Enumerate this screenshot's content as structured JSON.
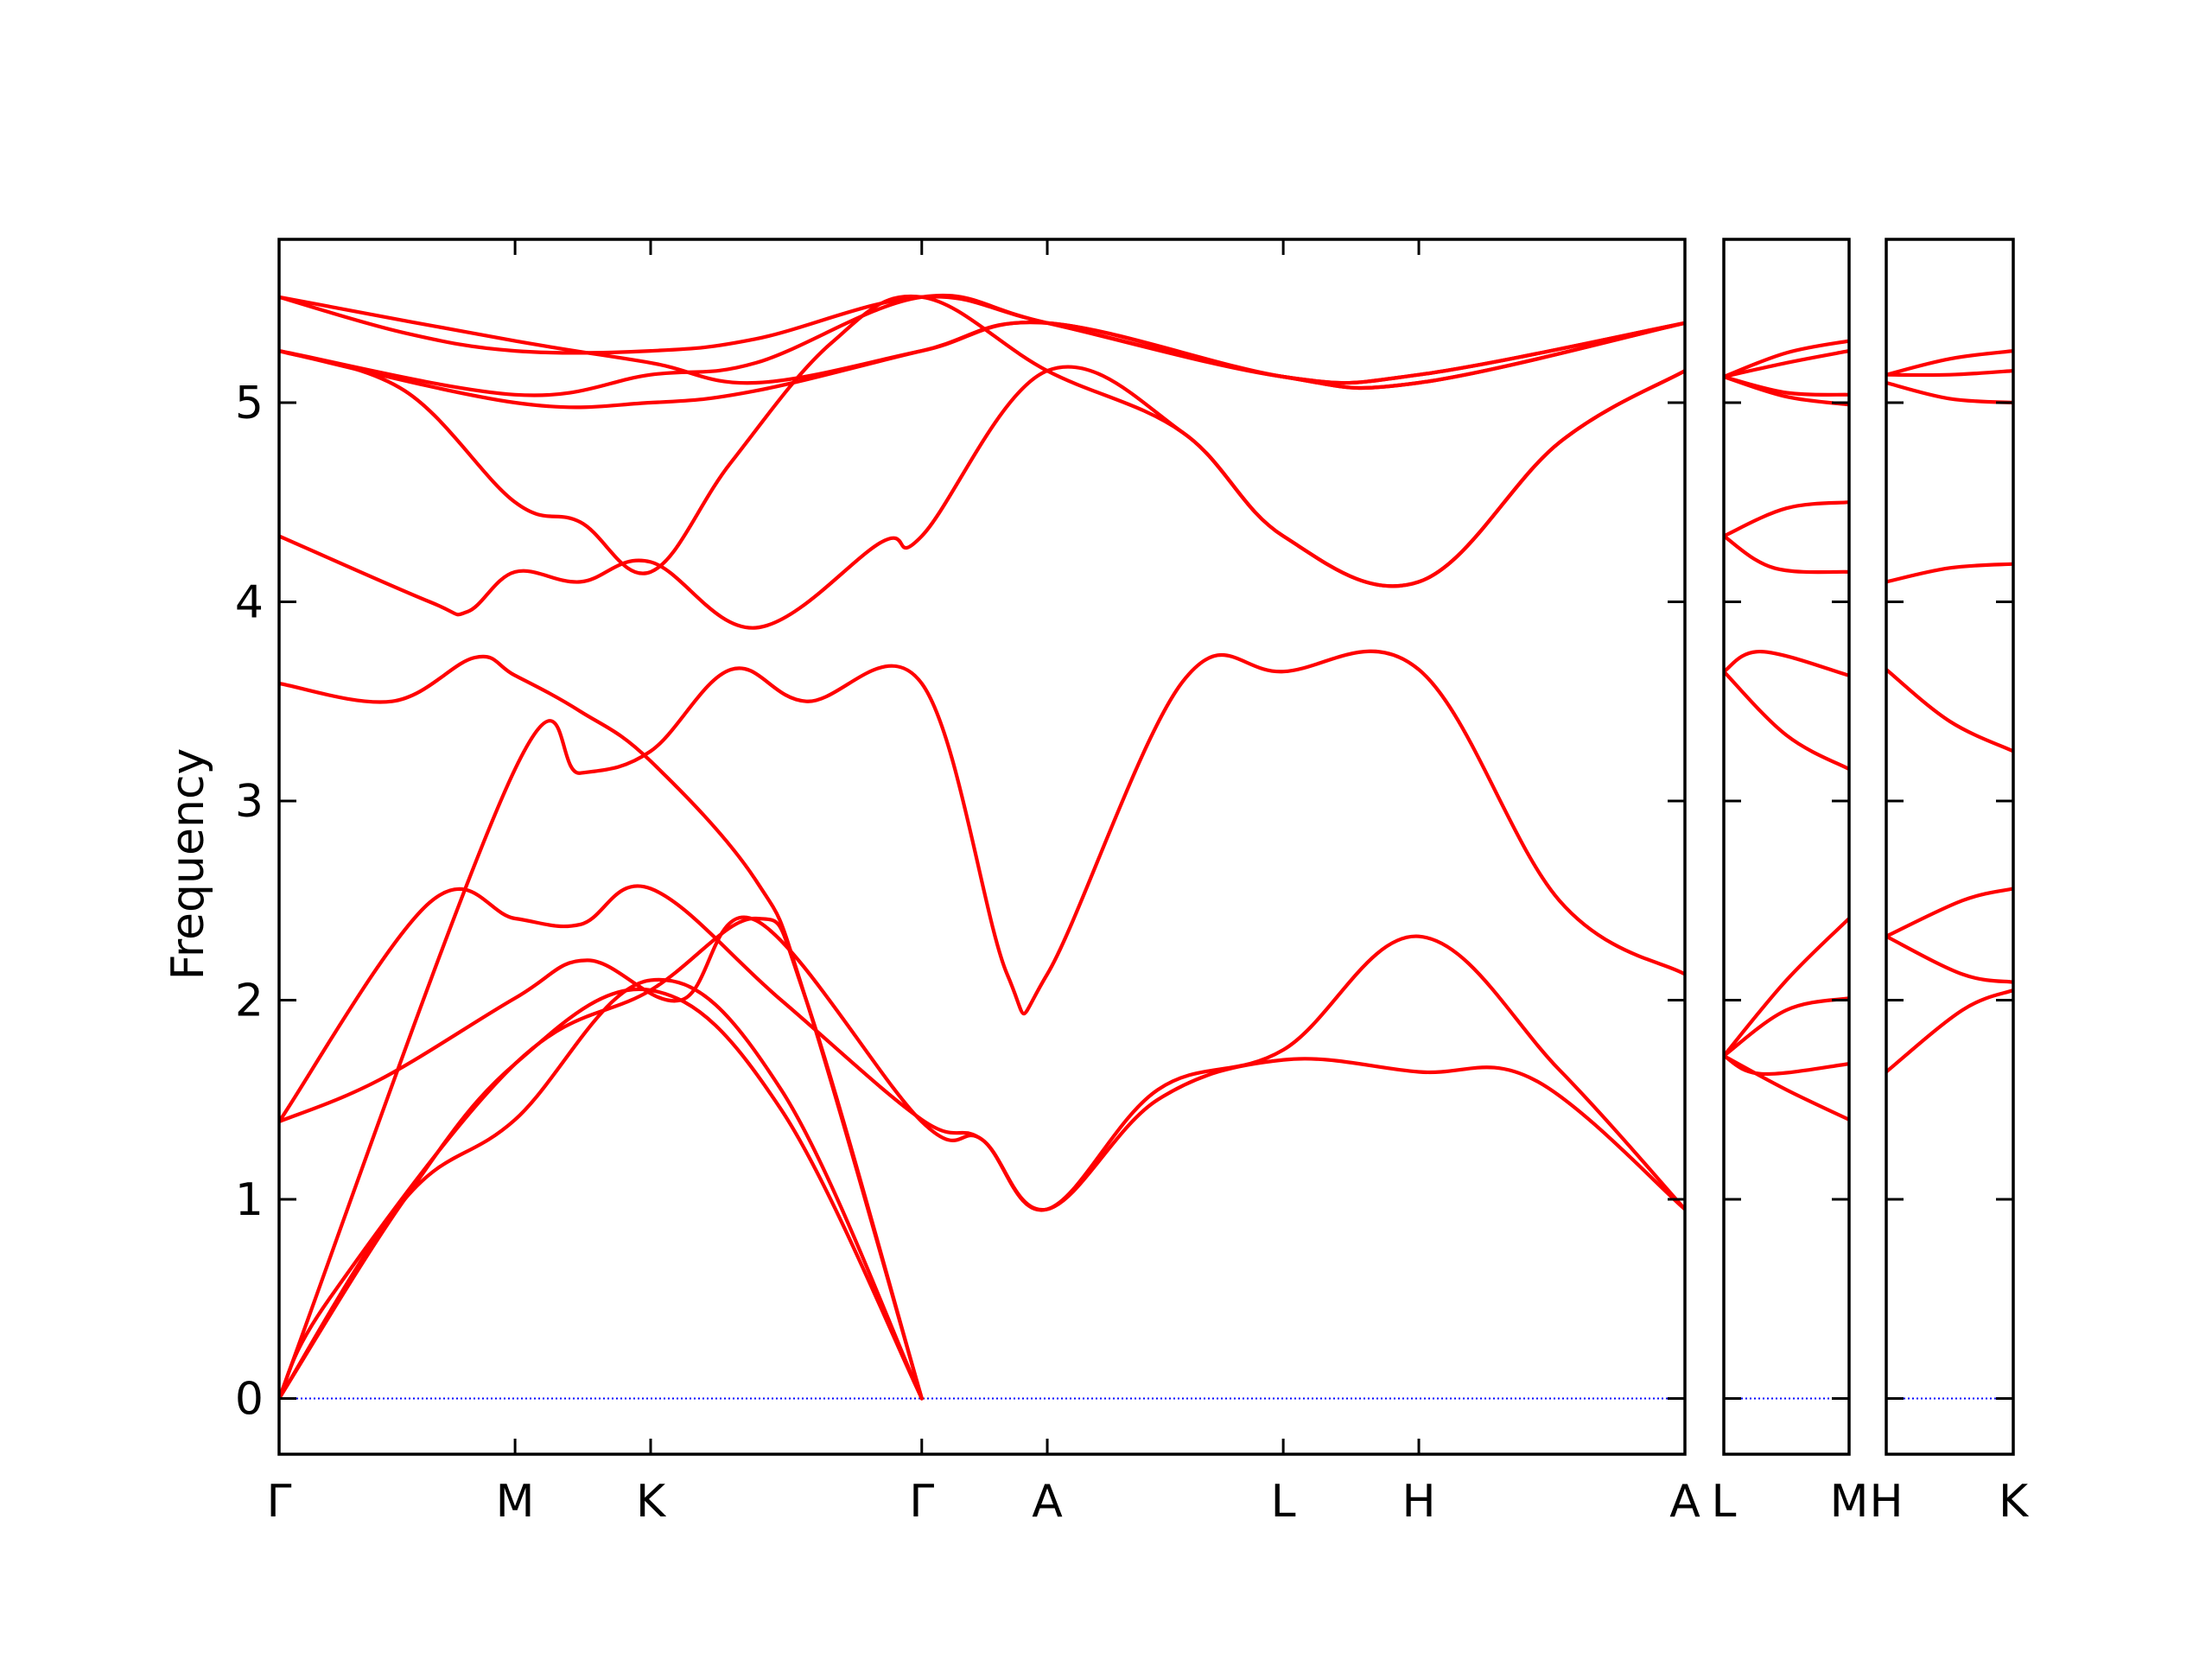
{
  "chart_data": {
    "type": "line",
    "title": "",
    "ylabel": "Frequency",
    "xlabel": "",
    "ylim": [
      -0.28,
      5.82
    ],
    "yticks": [
      "0",
      "1",
      "2",
      "3",
      "4",
      "5"
    ],
    "band_color": "#ff0000",
    "zero_line_color": "#0000ff",
    "panels": [
      {
        "name": "main",
        "xlim": [
          0,
          5.6
        ],
        "ticks": [
          {
            "x": 0.0,
            "label": "Γ"
          },
          {
            "x": 0.94,
            "label": "M"
          },
          {
            "x": 1.48,
            "label": "K"
          },
          {
            "x": 2.56,
            "label": "Γ"
          },
          {
            "x": 3.06,
            "label": "A"
          },
          {
            "x": 4.0,
            "label": "L"
          },
          {
            "x": 4.54,
            "label": "H"
          },
          {
            "x": 5.6,
            "label": "A"
          }
        ],
        "bands": [
          [
            [
              0,
              0
            ],
            [
              0.94,
              3.16
            ],
            [
              1.2,
              3.14
            ],
            [
              1.48,
              3.25
            ],
            [
              1.8,
              3.66
            ],
            [
              2.1,
              3.5
            ],
            [
              2.56,
              3.59
            ],
            [
              2.9,
              2.13
            ],
            [
              3.06,
              2.13
            ],
            [
              3.6,
              3.6
            ],
            [
              4.0,
              3.65
            ],
            [
              4.54,
              3.66
            ],
            [
              5.1,
              2.5
            ],
            [
              5.6,
              2.13
            ]
          ],
          [
            [
              0,
              3.59
            ],
            [
              0.45,
              3.5
            ],
            [
              0.78,
              3.72
            ],
            [
              0.94,
              3.63
            ],
            [
              1.2,
              3.45
            ],
            [
              1.48,
              3.2
            ],
            [
              1.9,
              2.6
            ],
            [
              2.1,
              2.0
            ],
            [
              2.56,
              0
            ]
          ],
          [
            [
              0,
              0
            ],
            [
              0.5,
              1.0
            ],
            [
              0.94,
              1.68
            ],
            [
              1.48,
              2.05
            ],
            [
              2.0,
              1.45
            ],
            [
              2.56,
              0
            ]
          ],
          [
            [
              0,
              0
            ],
            [
              0.5,
              1.0
            ],
            [
              0.94,
              1.4
            ],
            [
              1.48,
              2.1
            ],
            [
              2.0,
              1.55
            ],
            [
              2.56,
              0
            ]
          ],
          [
            [
              0,
              1.39
            ],
            [
              0.6,
              2.49
            ],
            [
              0.94,
              2.41
            ],
            [
              1.2,
              2.38
            ],
            [
              1.48,
              2.56
            ],
            [
              2.0,
              2.0
            ],
            [
              2.56,
              1.4
            ],
            [
              2.8,
              1.3
            ],
            [
              3.06,
              0.95
            ],
            [
              3.5,
              1.55
            ],
            [
              4.0,
              1.75
            ],
            [
              4.54,
              2.32
            ],
            [
              5.1,
              1.65
            ],
            [
              5.6,
              0.95
            ]
          ],
          [
            [
              0,
              1.39
            ],
            [
              0.4,
              1.6
            ],
            [
              0.94,
              2.01
            ],
            [
              1.23,
              2.2
            ],
            [
              1.6,
              2.0
            ],
            [
              1.9,
              2.4
            ],
            [
              2.56,
              1.39
            ],
            [
              2.8,
              1.3
            ],
            [
              3.06,
              0.95
            ],
            [
              3.5,
              1.5
            ],
            [
              4.0,
              1.7
            ],
            [
              4.54,
              1.64
            ],
            [
              5.0,
              1.6
            ],
            [
              5.6,
              0.95
            ]
          ],
          [
            [
              0,
              0
            ],
            [
              0.2,
              0.5
            ],
            [
              0.94,
              1.68
            ],
            [
              1.48,
              2.05
            ],
            [
              1.9,
              2.41
            ],
            [
              2.1,
              2.0
            ],
            [
              2.56,
              0
            ]
          ],
          [
            [
              0,
              4.33
            ],
            [
              0.6,
              4.0
            ],
            [
              0.75,
              3.95
            ],
            [
              0.94,
              4.15
            ],
            [
              1.2,
              4.1
            ],
            [
              1.48,
              4.2
            ],
            [
              1.9,
              3.87
            ],
            [
              2.4,
              4.3
            ],
            [
              2.56,
              4.33
            ],
            [
              3.06,
              5.16
            ],
            [
              3.6,
              4.85
            ],
            [
              4.0,
              4.33
            ],
            [
              4.54,
              4.1
            ],
            [
              5.1,
              4.8
            ],
            [
              5.6,
              5.16
            ]
          ],
          [
            [
              0,
              5.26
            ],
            [
              0.5,
              5.06
            ],
            [
              0.94,
              4.5
            ],
            [
              1.2,
              4.4
            ],
            [
              1.48,
              4.15
            ],
            [
              1.8,
              4.7
            ],
            [
              2.2,
              5.3
            ],
            [
              2.56,
              5.53
            ],
            [
              3.06,
              5.16
            ],
            [
              3.6,
              4.85
            ],
            [
              4.0,
              4.33
            ],
            [
              4.54,
              4.1
            ],
            [
              5.1,
              4.8
            ],
            [
              5.6,
              5.16
            ]
          ],
          [
            [
              0,
              5.53
            ],
            [
              0.5,
              5.35
            ],
            [
              0.94,
              5.26
            ],
            [
              1.48,
              5.26
            ],
            [
              1.9,
              5.32
            ],
            [
              2.56,
              5.53
            ],
            [
              3.06,
              5.4
            ],
            [
              4.0,
              5.13
            ],
            [
              4.54,
              5.14
            ],
            [
              5.6,
              5.4
            ]
          ],
          [
            [
              0,
              5.26
            ],
            [
              0.94,
              5.0
            ],
            [
              1.48,
              5.0
            ],
            [
              1.9,
              5.06
            ],
            [
              2.56,
              5.26
            ],
            [
              3.06,
              5.4
            ],
            [
              4.0,
              5.13
            ],
            [
              4.54,
              5.1
            ],
            [
              5.6,
              5.4
            ]
          ],
          [
            [
              0,
              5.53
            ],
            [
              0.94,
              5.31
            ],
            [
              1.48,
              5.2
            ],
            [
              1.9,
              5.1
            ],
            [
              2.56,
              5.26
            ],
            [
              3.06,
              5.4
            ],
            [
              4.0,
              5.13
            ],
            [
              4.54,
              5.14
            ],
            [
              5.6,
              5.4
            ]
          ],
          [
            [
              0,
              5.26
            ],
            [
              0.94,
              5.04
            ],
            [
              1.48,
              5.14
            ],
            [
              1.9,
              5.2
            ],
            [
              2.56,
              5.53
            ],
            [
              3.06,
              5.4
            ],
            [
              4.0,
              5.13
            ],
            [
              4.54,
              5.1
            ],
            [
              5.6,
              5.4
            ]
          ]
        ]
      },
      {
        "name": "L-M",
        "xlim": [
          0,
          1
        ],
        "ticks": [
          {
            "x": 0.0,
            "label": "L"
          },
          {
            "x": 1.0,
            "label": "M"
          }
        ],
        "bands": [
          [
            [
              0,
              1.72
            ],
            [
              0.5,
              1.55
            ],
            [
              1,
              1.4
            ]
          ],
          [
            [
              0,
              1.72
            ],
            [
              0.3,
              1.63
            ],
            [
              1,
              1.68
            ]
          ],
          [
            [
              0,
              1.72
            ],
            [
              0.5,
              1.95
            ],
            [
              1,
              2.01
            ]
          ],
          [
            [
              0,
              1.72
            ],
            [
              0.5,
              2.1
            ],
            [
              1,
              2.41
            ]
          ],
          [
            [
              0,
              3.65
            ],
            [
              0.5,
              3.33
            ],
            [
              1,
              3.16
            ]
          ],
          [
            [
              0,
              3.65
            ],
            [
              0.3,
              3.75
            ],
            [
              1,
              3.63
            ]
          ],
          [
            [
              0,
              4.33
            ],
            [
              0.4,
              4.17
            ],
            [
              1,
              4.15
            ]
          ],
          [
            [
              0,
              4.33
            ],
            [
              0.5,
              4.47
            ],
            [
              1,
              4.5
            ]
          ],
          [
            [
              0,
              5.13
            ],
            [
              0.5,
              5.03
            ],
            [
              1,
              4.99
            ]
          ],
          [
            [
              0,
              5.13
            ],
            [
              0.5,
              5.05
            ],
            [
              1,
              5.04
            ]
          ],
          [
            [
              0,
              5.13
            ],
            [
              0.5,
              5.2
            ],
            [
              1,
              5.26
            ]
          ],
          [
            [
              0,
              5.13
            ],
            [
              0.5,
              5.25
            ],
            [
              1,
              5.31
            ]
          ]
        ]
      },
      {
        "name": "H-K",
        "xlim": [
          0,
          1
        ],
        "ticks": [
          {
            "x": 0.0,
            "label": "H"
          },
          {
            "x": 1.0,
            "label": "K"
          }
        ],
        "bands": [
          [
            [
              0,
              1.64
            ],
            [
              0.6,
              1.95
            ],
            [
              1,
              2.05
            ]
          ],
          [
            [
              0,
              2.32
            ],
            [
              0.6,
              2.13
            ],
            [
              1,
              2.09
            ]
          ],
          [
            [
              0,
              2.32
            ],
            [
              0.6,
              2.5
            ],
            [
              1,
              2.56
            ]
          ],
          [
            [
              0,
              3.66
            ],
            [
              0.5,
              3.4
            ],
            [
              1,
              3.25
            ]
          ],
          [
            [
              0,
              4.1
            ],
            [
              0.5,
              4.17
            ],
            [
              1,
              4.19
            ]
          ],
          [
            [
              0,
              5.1
            ],
            [
              0.5,
              5.02
            ],
            [
              1,
              5.0
            ]
          ],
          [
            [
              0,
              5.14
            ],
            [
              0.5,
              5.14
            ],
            [
              1,
              5.16
            ]
          ],
          [
            [
              0,
              5.14
            ],
            [
              0.5,
              5.22
            ],
            [
              1,
              5.26
            ]
          ]
        ]
      }
    ]
  }
}
